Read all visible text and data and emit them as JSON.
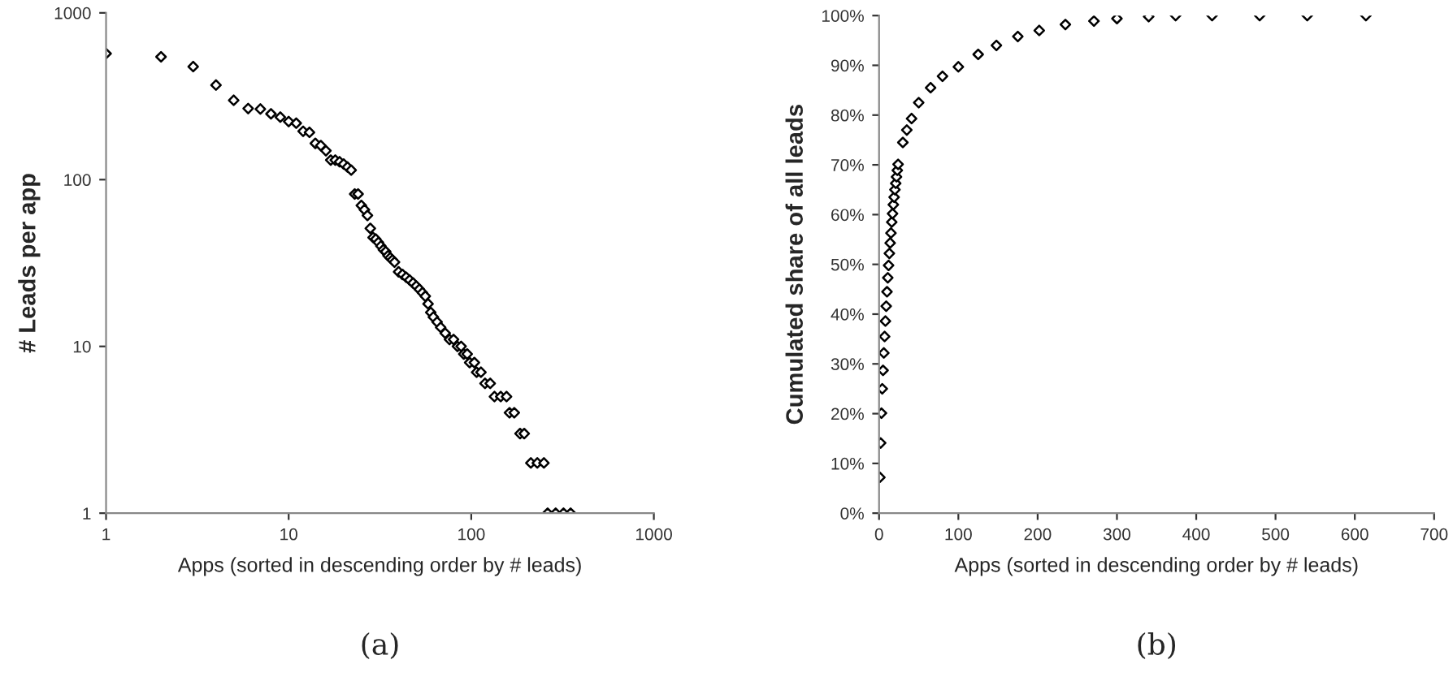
{
  "chart_data": [
    {
      "type": "scatter",
      "xlabel": "Apps (sorted in descending order by # leads)",
      "ylabel": "# Leads per app",
      "log": "xy",
      "marker": "diamond",
      "grid": false,
      "xlim": [
        1,
        1000
      ],
      "ylim": [
        1,
        1000
      ],
      "xticks": [
        1,
        10,
        100,
        1000
      ],
      "yticks": [
        1,
        10,
        100,
        1000
      ],
      "annotations": [
        "(a)"
      ],
      "series": [
        {
          "color": "#000000",
          "x": [
            1,
            2,
            3,
            4,
            5,
            6,
            7,
            8,
            9,
            10,
            11,
            12,
            13,
            14,
            15,
            16,
            17,
            18,
            19,
            20,
            21,
            22,
            23,
            24,
            25,
            26,
            27,
            28,
            29,
            30,
            31,
            32,
            33,
            34,
            35,
            36,
            37,
            38,
            40,
            42,
            44,
            46,
            48,
            50,
            52,
            54,
            56,
            58,
            60,
            62,
            65,
            68,
            72,
            76,
            80,
            84,
            88,
            91,
            95,
            98,
            104,
            107,
            113,
            119,
            127,
            134,
            145,
            156,
            162,
            172,
            185,
            195,
            212,
            230,
            250,
            262,
            290,
            320,
            350
          ],
          "values": [
            570,
            545,
            476,
            369,
            299,
            267,
            265,
            248,
            237,
            223,
            218,
            195,
            192,
            165,
            160,
            149,
            131,
            131,
            128,
            124,
            119,
            114,
            82,
            82,
            70,
            66,
            61,
            51,
            45,
            44,
            42,
            40,
            38,
            37,
            35,
            34,
            33,
            32,
            28,
            27,
            26,
            25,
            24,
            23,
            22,
            21,
            20,
            18,
            16,
            15,
            14,
            13,
            12,
            11,
            11,
            10,
            10,
            9,
            9,
            8,
            8,
            7,
            7,
            6,
            6,
            5,
            5,
            5,
            4,
            4,
            3,
            3,
            2,
            2,
            2,
            1,
            1,
            1,
            1
          ]
        }
      ]
    },
    {
      "type": "scatter",
      "xlabel": "Apps (sorted in descending order by # leads)",
      "ylabel": "Cumulated share of all leads",
      "marker": "diamond",
      "grid": false,
      "xlim": [
        0,
        700
      ],
      "ylim": [
        0,
        100
      ],
      "xticks": [
        0,
        100,
        200,
        300,
        400,
        500,
        600,
        700
      ],
      "yticks": [
        {
          "value": 0,
          "label": "0%"
        },
        {
          "value": 10,
          "label": "10%"
        },
        {
          "value": 20,
          "label": "20%"
        },
        {
          "value": 30,
          "label": "30%"
        },
        {
          "value": 40,
          "label": "40%"
        },
        {
          "value": 50,
          "label": "50%"
        },
        {
          "value": 60,
          "label": "60%"
        },
        {
          "value": 70,
          "label": "70%"
        },
        {
          "value": 80,
          "label": "80%"
        },
        {
          "value": 90,
          "label": "90%"
        },
        {
          "value": 100,
          "label": "100%"
        }
      ],
      "annotations": [
        "(b)"
      ],
      "series": [
        {
          "color": "#000000",
          "x": [
            1,
            2,
            3,
            4,
            5,
            6,
            7,
            8,
            9,
            10,
            11,
            12,
            13,
            14,
            15,
            16,
            17,
            18,
            19,
            20,
            21,
            22,
            23,
            24,
            30,
            35,
            41,
            50,
            65,
            80,
            100,
            125,
            148,
            175,
            202,
            235,
            271,
            300,
            340,
            374,
            420,
            480,
            540,
            614
          ],
          "values": [
            7.2,
            14.1,
            20.1,
            25,
            28.7,
            32.2,
            35.5,
            38.6,
            41.6,
            44.5,
            47.3,
            49.8,
            52.2,
            54.3,
            56.3,
            58.5,
            60.2,
            62,
            63.5,
            65,
            66.3,
            67.6,
            68.9,
            70.1,
            74.5,
            77,
            79.3,
            82.5,
            85.5,
            87.8,
            89.7,
            92.2,
            94,
            95.8,
            97,
            98.2,
            98.9,
            99.4,
            99.8,
            100,
            100,
            100,
            100,
            100
          ]
        }
      ]
    }
  ]
}
